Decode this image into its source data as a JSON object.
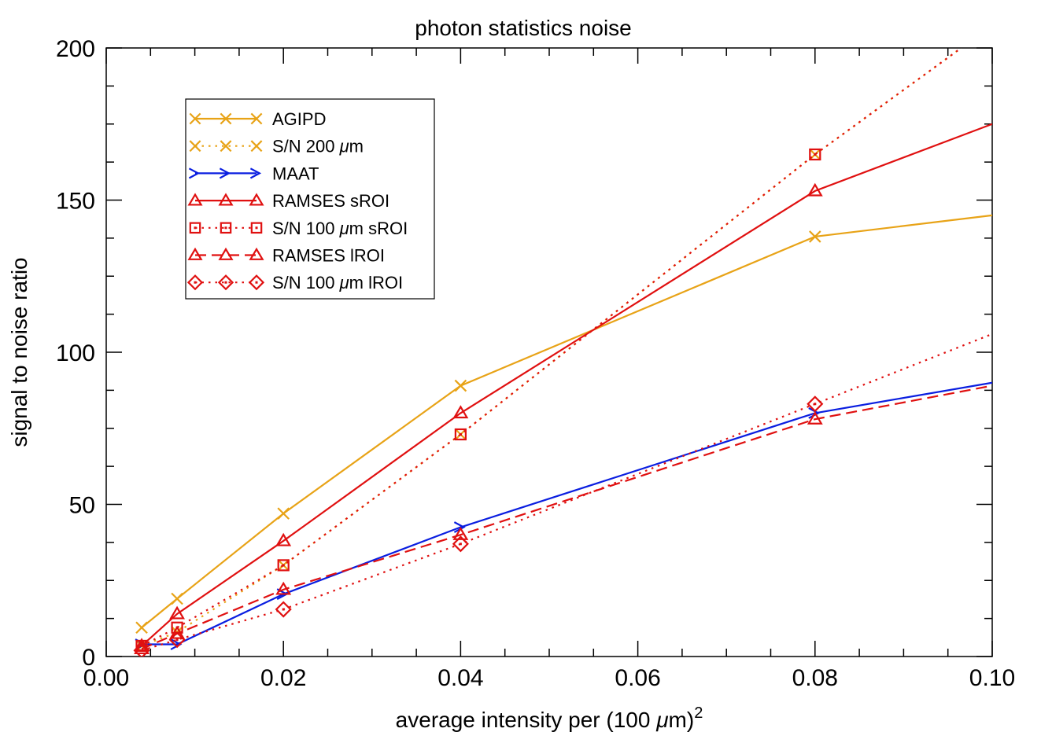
{
  "chart_data": {
    "type": "line",
    "title": "photon statistics noise",
    "xlabel_prefix": "average intensity per (100 ",
    "xlabel_mu": "μ",
    "xlabel_unit": "m)",
    "xlabel_sup": "2",
    "ylabel": "signal to noise ratio",
    "xlim": [
      0.0,
      0.1
    ],
    "ylim": [
      0,
      200
    ],
    "x_ticks": [
      0.0,
      0.02,
      0.04,
      0.06,
      0.08,
      0.1
    ],
    "x_tick_labels": [
      "0.00",
      "0.02",
      "0.04",
      "0.06",
      "0.08",
      "0.10"
    ],
    "y_ticks": [
      0,
      50,
      100,
      150,
      200
    ],
    "y_tick_labels": [
      "0",
      "50",
      "100",
      "150",
      "200"
    ],
    "legend_position": "top-left",
    "series": [
      {
        "name": "AGIPD",
        "label_parts": [
          "AGIPD"
        ],
        "color": "#e8a317",
        "dash": "solid",
        "marker": "x",
        "x": [
          0.004,
          0.008,
          0.02,
          0.04,
          0.08,
          0.1
        ],
        "y": [
          9.5,
          19,
          47,
          89,
          138,
          145
        ],
        "marker_count": 5
      },
      {
        "name": "S/N 200 μm",
        "label_parts": [
          "S/N 200 ",
          "μ",
          "m"
        ],
        "color": "#e8a317",
        "dash": "dotted",
        "marker": "x",
        "x": [
          0.004,
          0.008,
          0.02,
          0.04,
          0.08,
          0.0965
        ],
        "y": [
          3.5,
          8,
          30,
          73,
          165,
          200
        ],
        "marker_count": 5
      },
      {
        "name": "MAAT",
        "label_parts": [
          "MAAT"
        ],
        "color": "#0a1ee0",
        "dash": "solid",
        "marker": "arrow",
        "x": [
          0.004,
          0.008,
          0.02,
          0.04,
          0.08,
          0.1
        ],
        "y": [
          4,
          4,
          20.5,
          42.5,
          80,
          90
        ],
        "marker_count": 5
      },
      {
        "name": "RAMSES sROI",
        "label_parts": [
          "RAMSES sROI"
        ],
        "color": "#e01010",
        "dash": "solid",
        "marker": "triangle",
        "x": [
          0.004,
          0.008,
          0.02,
          0.04,
          0.08,
          0.1
        ],
        "y": [
          3.5,
          14,
          38,
          80,
          153,
          175
        ],
        "marker_count": 5
      },
      {
        "name": "S/N 100 μm sROI",
        "label_parts": [
          "S/N 100 ",
          "μ",
          "m sROI"
        ],
        "color": "#e01010",
        "dash": "dotted",
        "marker": "square",
        "x": [
          0.004,
          0.008,
          0.02,
          0.04,
          0.08,
          0.0965
        ],
        "y": [
          3.5,
          9.5,
          30,
          73,
          165,
          200
        ],
        "marker_count": 5
      },
      {
        "name": "RAMSES lROI",
        "label_parts": [
          "RAMSES lROI"
        ],
        "color": "#e01010",
        "dash": "dashed",
        "marker": "triangle",
        "x": [
          0.004,
          0.008,
          0.02,
          0.04,
          0.08,
          0.1
        ],
        "y": [
          2.5,
          7.5,
          22,
          40,
          78,
          89
        ],
        "marker_count": 5
      },
      {
        "name": "S/N 100 μm lROI",
        "label_parts": [
          "S/N 100 ",
          "μ",
          "m lROI"
        ],
        "color": "#e01010",
        "dash": "dotted",
        "marker": "diamond",
        "x": [
          0.004,
          0.008,
          0.02,
          0.04,
          0.08,
          0.1
        ],
        "y": [
          2,
          5.5,
          15.5,
          37,
          83,
          106
        ],
        "marker_count": 5
      }
    ]
  }
}
